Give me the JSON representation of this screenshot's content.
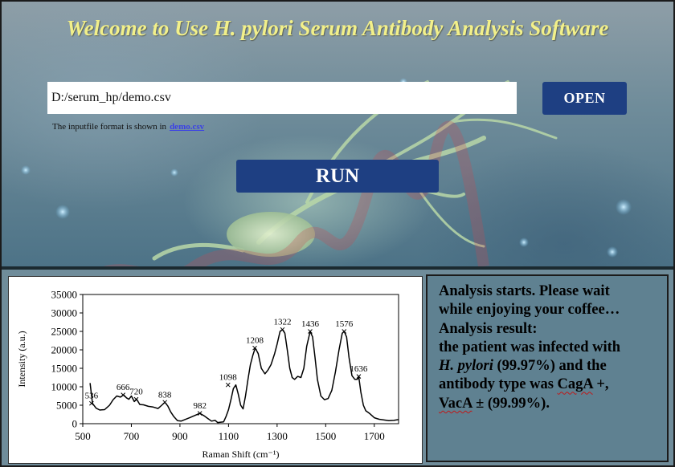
{
  "header": {
    "title": "Welcome to Use H. pylori Serum Antibody Analysis Software"
  },
  "file": {
    "path": "D:/serum_hp/demo.csv",
    "open_label": "OPEN"
  },
  "hint": {
    "text": "The inputfile format is shown in",
    "link_text": "demo.csv"
  },
  "run": {
    "label": "RUN"
  },
  "result": {
    "line1": "Analysis starts. Please wait",
    "line2": "while enjoying your coffee…",
    "line3": "Analysis result:",
    "line4": "the patient was infected with",
    "line5_species": "H. pylori",
    "line5_rest": " (99.97%) and the",
    "line6_pre": "antibody type was ",
    "line6_cag": "CagA",
    "line6_post": " +,",
    "line7_vac": "VacA",
    "line7_post": " ± (99.99%)."
  },
  "colors": {
    "title": "#f2f08a",
    "button": "#1e3f82",
    "link": "#3b40e6",
    "panel": "#5f8191"
  },
  "chart_data": {
    "type": "line",
    "xlabel": "Raman Shift (cm⁻¹)",
    "ylabel": "Intensity (a.u.)",
    "xlim": [
      500,
      1800
    ],
    "ylim": [
      0,
      35000
    ],
    "xticks": [
      500,
      700,
      900,
      1100,
      1300,
      1500,
      1700
    ],
    "yticks": [
      0,
      5000,
      10000,
      15000,
      20000,
      25000,
      30000,
      35000
    ],
    "grid": false,
    "series": [
      {
        "x": [
          530,
          540,
          555,
          570,
          590,
          610,
          625,
          640,
          655,
          668,
          680,
          690,
          700,
          712,
          722,
          735,
          750,
          770,
          790,
          810,
          825,
          838,
          850,
          862,
          875,
          890,
          905,
          920,
          940,
          960,
          982,
          1000,
          1015,
          1030,
          1045,
          1055,
          1065,
          1080,
          1090,
          1100,
          1110,
          1120,
          1130,
          1140,
          1150,
          1160,
          1170,
          1180,
          1190,
          1200,
          1210,
          1222,
          1235,
          1250,
          1262,
          1275,
          1290,
          1300,
          1312,
          1322,
          1332,
          1342,
          1352,
          1362,
          1372,
          1385,
          1398,
          1410,
          1422,
          1436,
          1446,
          1456,
          1466,
          1480,
          1495,
          1510,
          1525,
          1540,
          1555,
          1568,
          1576,
          1586,
          1596,
          1608,
          1620,
          1630,
          1636,
          1645,
          1655,
          1665,
          1680,
          1700,
          1720,
          1740,
          1760,
          1780,
          1800
        ],
        "y": [
          11000,
          5500,
          4200,
          3700,
          3800,
          5000,
          6500,
          7500,
          7200,
          7800,
          7000,
          6600,
          7500,
          6000,
          6600,
          5200,
          5100,
          4700,
          4500,
          4100,
          5000,
          5800,
          4800,
          3200,
          1900,
          800,
          700,
          1100,
          1600,
          2200,
          2800,
          2100,
          1400,
          700,
          900,
          300,
          400,
          500,
          2000,
          3800,
          6500,
          9500,
          10500,
          8000,
          5000,
          4000,
          7500,
          12000,
          16000,
          18500,
          20500,
          19000,
          15000,
          13500,
          14500,
          16000,
          19000,
          21500,
          25000,
          25500,
          24500,
          20000,
          15000,
          12500,
          12000,
          12800,
          12500,
          15000,
          21000,
          25000,
          23500,
          18000,
          12000,
          7500,
          6500,
          6800,
          9000,
          14000,
          20000,
          24500,
          25000,
          23500,
          18000,
          13000,
          12000,
          12000,
          12800,
          8500,
          5000,
          3500,
          2800,
          1600,
          1200,
          1000,
          800,
          900,
          1100
        ]
      }
    ],
    "peak_labels": [
      {
        "x": 536,
        "y": 5500,
        "text": "536"
      },
      {
        "x": 666,
        "y": 7800,
        "text": "666"
      },
      {
        "x": 720,
        "y": 6600,
        "text": "720"
      },
      {
        "x": 838,
        "y": 5800,
        "text": "838"
      },
      {
        "x": 982,
        "y": 2800,
        "text": "982"
      },
      {
        "x": 1098,
        "y": 10500,
        "text": "1098"
      },
      {
        "x": 1208,
        "y": 20500,
        "text": "1208"
      },
      {
        "x": 1322,
        "y": 25500,
        "text": "1322"
      },
      {
        "x": 1436,
        "y": 25000,
        "text": "1436"
      },
      {
        "x": 1576,
        "y": 25000,
        "text": "1576"
      },
      {
        "x": 1636,
        "y": 12800,
        "text": "1636"
      }
    ]
  }
}
